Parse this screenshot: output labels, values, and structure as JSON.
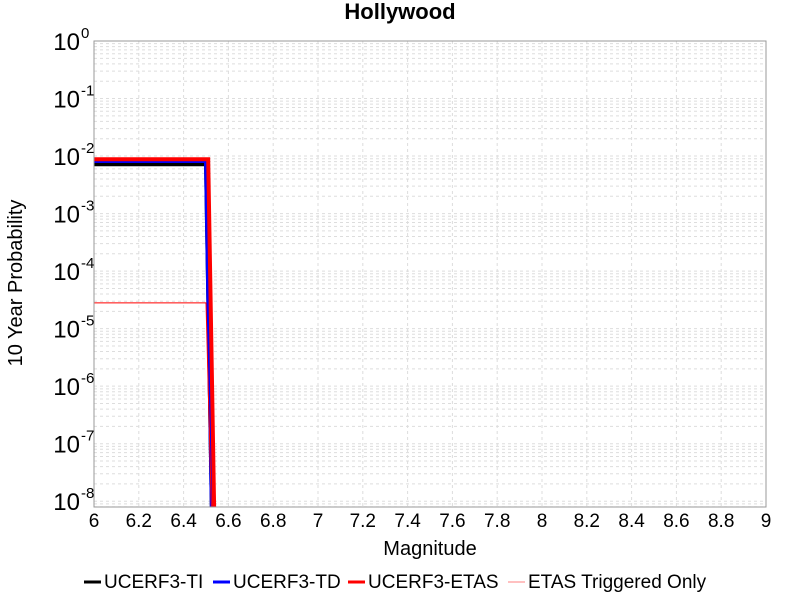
{
  "chart_data": {
    "type": "line",
    "title": "Hollywood",
    "xlabel": "Magnitude",
    "ylabel": "10 Year Probability",
    "yscale": "log",
    "xlim": [
      6,
      9
    ],
    "ylim_exponents": [
      -8.1,
      0
    ],
    "x_ticks": [
      "6",
      "6.2",
      "6.4",
      "6.6",
      "6.8",
      "7",
      "7.2",
      "7.4",
      "7.6",
      "7.8",
      "8",
      "8.2",
      "8.4",
      "8.6",
      "8.8",
      "9"
    ],
    "y_tick_base": "10",
    "y_tick_exponents": [
      "0",
      "-1",
      "-2",
      "-3",
      "-4",
      "-5",
      "-6",
      "-7",
      "-8"
    ],
    "grid": true,
    "series": [
      {
        "name": "UCERF3-TI",
        "color": "#000000",
        "x": [
          6.0,
          6.5,
          6.53
        ],
        "y": [
          0.0072,
          0.0072,
          1e-09
        ]
      },
      {
        "name": "UCERF3-TD",
        "color": "#0000ff",
        "x": [
          6.0,
          6.5,
          6.53
        ],
        "y": [
          0.0082,
          0.0082,
          1e-09
        ]
      },
      {
        "name": "UCERF3-ETAS",
        "color": "#ff0000",
        "x": [
          6.0,
          6.51,
          6.54
        ],
        "y": [
          0.0088,
          0.0088,
          1e-09
        ]
      },
      {
        "name": "ETAS Triggered Only",
        "color": "#ff0000",
        "x": [
          6.0,
          6.5,
          6.53
        ],
        "y": [
          2.8e-05,
          2.8e-05,
          1e-09
        ]
      }
    ],
    "legend": {
      "placement": "bottom",
      "entries": [
        {
          "label": "UCERF3-TI",
          "color": "#000000"
        },
        {
          "label": "UCERF3-TD",
          "color": "#0000ff"
        },
        {
          "label": "UCERF3-ETAS",
          "color": "#ff0000"
        },
        {
          "label": "ETAS Triggered Only",
          "color": "#ff8080"
        }
      ]
    }
  }
}
